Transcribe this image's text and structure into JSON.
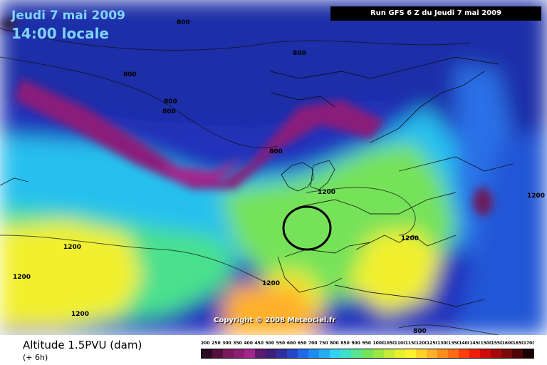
{
  "header": {
    "date": "Jeudi 7 mai 2009",
    "hour": "14:00 locale",
    "run": "Run GFS 6 Z du Jeudi 7 mai 2009"
  },
  "copyright": "Copyright © 2008 Meteociel.fr",
  "footer": {
    "variable": "Altitude 1.5PVU (dam)",
    "step": "(+ 6h)"
  },
  "contour_labels": [
    "800",
    "800",
    "800",
    "800",
    "800",
    "800",
    "1200",
    "1200",
    "1200",
    "1200",
    "1200",
    "1200",
    "1200",
    "800"
  ],
  "legend": {
    "labels": [
      "200",
      "250",
      "300",
      "350",
      "400",
      "450",
      "500",
      "550",
      "600",
      "650",
      "700",
      "750",
      "800",
      "850",
      "900",
      "950",
      "1000",
      "1050",
      "1100",
      "1150",
      "1200",
      "1250",
      "1300",
      "1350",
      "1400",
      "1450",
      "1500",
      "1550",
      "1600",
      "1650",
      "1700"
    ],
    "colors": [
      "#2a0a24",
      "#54103f",
      "#7a1a5c",
      "#8c1f73",
      "#a3268d",
      "#5b1a6e",
      "#3f1f7a",
      "#2f2fa0",
      "#2646c8",
      "#1f6ae6",
      "#1d8cf0",
      "#25acf5",
      "#2fd2f5",
      "#3fe0c8",
      "#58e58f",
      "#73e35a",
      "#9be640",
      "#c3ec38",
      "#e8f02e",
      "#fff22a",
      "#ffd42a",
      "#ffb02a",
      "#ff8c1e",
      "#ff6a14",
      "#ff3f0a",
      "#f01d0a",
      "#d10a0a",
      "#a60a0a",
      "#7a0a0a",
      "#4f0505",
      "#1a0202"
    ]
  }
}
